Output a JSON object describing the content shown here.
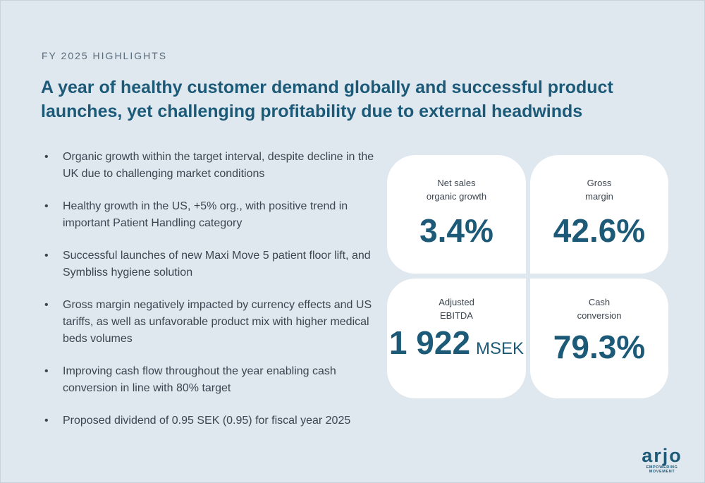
{
  "header": {
    "eyebrow": "FY 2025 HIGHLIGHTS",
    "title": "A year of healthy customer demand globally and successful product launches, yet challenging profitability due to external headwinds"
  },
  "bullets": [
    "Organic growth within the target interval, despite decline in the UK due to challenging market conditions",
    "Healthy growth in the US, +5% org., with positive trend in important Patient Handling category",
    "Successful launches of new Maxi Move 5 patient floor lift, and Symbliss hygiene solution",
    "Gross margin negatively impacted by currency effects and US tariffs, as well as unfavorable product mix with higher medical beds volumes",
    "Improving cash flow throughout the year enabling cash conversion in line with 80% target",
    "Proposed dividend of 0.95 SEK (0.95) for fiscal year 2025"
  ],
  "bullet_symbol": "•",
  "kpis": [
    {
      "label_line1": "Net sales",
      "label_line2": "organic growth",
      "value": "3.4%",
      "unit": ""
    },
    {
      "label_line1": "Gross",
      "label_line2": "margin",
      "value": "42.6%",
      "unit": ""
    },
    {
      "label_line1": "Adjusted",
      "label_line2": "EBITDA",
      "value": "1 922",
      "unit": "MSEK"
    },
    {
      "label_line1": "Cash",
      "label_line2": "conversion",
      "value": "79.3%",
      "unit": ""
    }
  ],
  "logo": {
    "word": "arjo",
    "tagline": "EMPOWERING MOVEMENT"
  },
  "colors": {
    "accent": "#1c5a78",
    "background": "#dfe7ef",
    "card": "#ffffff"
  }
}
